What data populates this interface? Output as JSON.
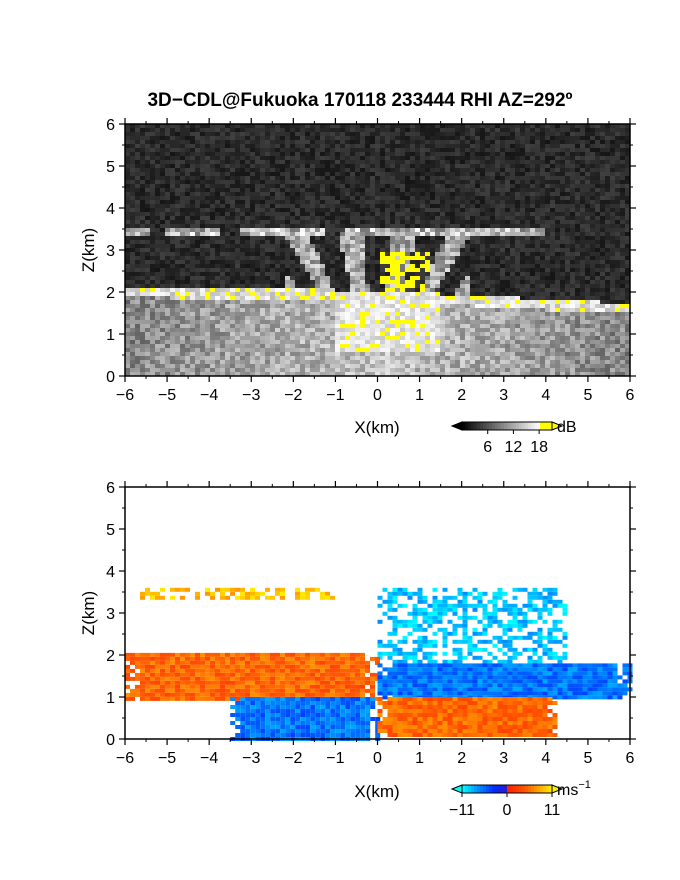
{
  "title": "3D−CDL@Fukuoka 170118 233444 RHI AZ=292º",
  "chart_data": [
    {
      "type": "heatmap",
      "panel": "reflectivity",
      "xlabel": "X(km)",
      "ylabel": "Z(km)",
      "xlim": [
        -6,
        6
      ],
      "ylim": [
        0,
        6
      ],
      "xticks": [
        "−6",
        "−5",
        "−4",
        "−3",
        "−2",
        "−1",
        "0",
        "1",
        "2",
        "3",
        "4",
        "5",
        "6"
      ],
      "yticks": [
        "0",
        "1",
        "2",
        "3",
        "4",
        "5",
        "6"
      ],
      "colorbar": {
        "unit": "dB",
        "ticks": [
          "6",
          "12",
          "18"
        ],
        "range": [
          0,
          21
        ],
        "scheme": "grayscale-to-yellow"
      },
      "features": [
        {
          "name": "background",
          "z_range": [
            0,
            6
          ],
          "value": 3
        },
        {
          "name": "cloud base layer",
          "x_range": [
            -6,
            6
          ],
          "z_center_at_x": [
            [
              -6,
              2.0
            ],
            [
              -3,
              1.95
            ],
            [
              0,
              1.9
            ],
            [
              3,
              1.75
            ],
            [
              6,
              1.6
            ]
          ],
          "thickness": 0.25,
          "value": 19
        },
        {
          "name": "upper layer",
          "x_range": [
            -6,
            4
          ],
          "z": 3.45,
          "value": 18
        },
        {
          "name": "central core",
          "x_range": [
            -1,
            1.5
          ],
          "z_range": [
            0.6,
            2.0
          ],
          "value": 19
        }
      ]
    },
    {
      "type": "heatmap",
      "panel": "doppler velocity",
      "xlabel": "X(km)",
      "ylabel": "Z(km)",
      "xlim": [
        -6,
        6
      ],
      "ylim": [
        0,
        6
      ],
      "xticks": [
        "−6",
        "−5",
        "−4",
        "−3",
        "−2",
        "−1",
        "0",
        "1",
        "2",
        "3",
        "4",
        "5",
        "6"
      ],
      "yticks": [
        "0",
        "1",
        "2",
        "3",
        "4",
        "5",
        "6"
      ],
      "colorbar": {
        "unit": "ms",
        "unit_exp": "−1",
        "ticks": [
          "−11",
          "0",
          "11"
        ],
        "range": [
          -11,
          11
        ],
        "scheme": "cyan-blue-red-yellow"
      },
      "features": [
        {
          "name": "left upper layer",
          "x_range": [
            -6,
            -1
          ],
          "z": 3.5,
          "value": 9
        },
        {
          "name": "right upper layer",
          "x_range": [
            0,
            4.5
          ],
          "z_range": [
            1.8,
            3.6
          ],
          "value": -9
        },
        {
          "name": "left mid layer",
          "x_range": [
            -6,
            0
          ],
          "z_range": [
            1.0,
            2.05
          ],
          "value": 5
        },
        {
          "name": "left low layer",
          "x_range": [
            -3.5,
            0
          ],
          "z_range": [
            0,
            1.0
          ],
          "value": -6
        },
        {
          "name": "right mid layer",
          "x_range": [
            0,
            6
          ],
          "z_range": [
            1.0,
            1.8
          ],
          "value": -6
        },
        {
          "name": "right low layer",
          "x_range": [
            0,
            4.2
          ],
          "z_range": [
            0.1,
            1.0
          ],
          "value": 5
        }
      ]
    }
  ]
}
